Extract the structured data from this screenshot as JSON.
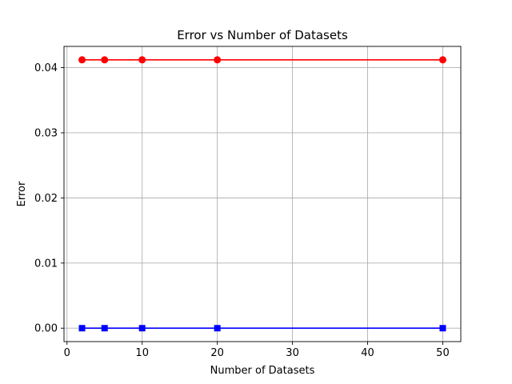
{
  "chart_data": {
    "type": "line",
    "title": "Error vs Number of Datasets",
    "xlabel": "Number of Datasets",
    "ylabel": "Error",
    "xlim": [
      -0.4,
      52.4
    ],
    "ylim": [
      -0.00206,
      0.04326
    ],
    "xticks": [
      0,
      10,
      20,
      30,
      40,
      50
    ],
    "xtick_labels": [
      "0",
      "10",
      "20",
      "30",
      "40",
      "50"
    ],
    "yticks": [
      0.0,
      0.01,
      0.02,
      0.03,
      0.04
    ],
    "ytick_labels": [
      "0.00",
      "0.01",
      "0.02",
      "0.03",
      "0.04"
    ],
    "grid": true,
    "x": [
      2,
      5,
      10,
      20,
      50
    ],
    "series": [
      {
        "values": [
          0.0412,
          0.0412,
          0.0412,
          0.0412,
          0.0412
        ],
        "color": "#ff0000",
        "marker": "circle"
      },
      {
        "values": [
          0.0,
          0.0,
          0.0,
          0.0,
          0.0
        ],
        "color": "#0000ff",
        "marker": "square"
      }
    ]
  }
}
